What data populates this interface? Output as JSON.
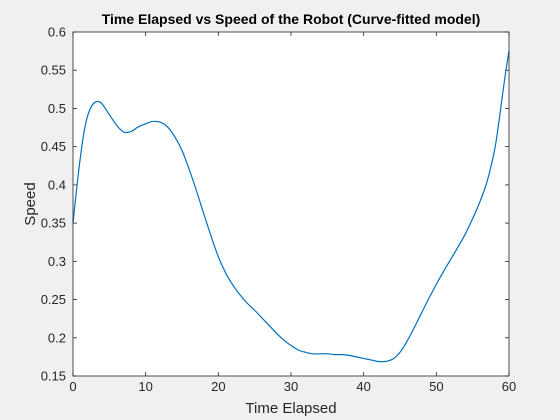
{
  "chart_data": {
    "type": "line",
    "title": "Time Elapsed vs Speed of the Robot (Curve-fitted model)",
    "xlabel": "Time Elapsed",
    "ylabel": "Speed",
    "xlim": [
      0,
      60
    ],
    "ylim": [
      0.15,
      0.6
    ],
    "xticks": [
      0,
      10,
      20,
      30,
      40,
      50,
      60
    ],
    "yticks": [
      0.15,
      0.2,
      0.25,
      0.3,
      0.35,
      0.4,
      0.45,
      0.5,
      0.55,
      0.6
    ],
    "grid": false,
    "series": [
      {
        "color": "#0072bd",
        "x": [
          0,
          0.5,
          1,
          1.5,
          2,
          2.5,
          3,
          3.5,
          4,
          5,
          6,
          7,
          8,
          9,
          10,
          11,
          12,
          13,
          14,
          15,
          16,
          17,
          18,
          19,
          20,
          21,
          22,
          23,
          24,
          25,
          26,
          27,
          28,
          29,
          30,
          31,
          32,
          33,
          34,
          35,
          36,
          37,
          38,
          39,
          40,
          41,
          42,
          43,
          44,
          45,
          46,
          47,
          48,
          49,
          50,
          51,
          52,
          53,
          54,
          55,
          56,
          57,
          58,
          58.5,
          59,
          59.5,
          60
        ],
        "y": [
          0.35,
          0.395,
          0.435,
          0.468,
          0.49,
          0.502,
          0.508,
          0.509,
          0.506,
          0.492,
          0.478,
          0.469,
          0.47,
          0.476,
          0.48,
          0.483,
          0.482,
          0.476,
          0.463,
          0.445,
          0.42,
          0.392,
          0.362,
          0.333,
          0.306,
          0.285,
          0.269,
          0.256,
          0.245,
          0.236,
          0.226,
          0.216,
          0.206,
          0.197,
          0.19,
          0.184,
          0.181,
          0.179,
          0.179,
          0.179,
          0.178,
          0.178,
          0.177,
          0.175,
          0.173,
          0.171,
          0.169,
          0.169,
          0.172,
          0.181,
          0.196,
          0.214,
          0.233,
          0.252,
          0.27,
          0.287,
          0.303,
          0.319,
          0.336,
          0.356,
          0.378,
          0.405,
          0.445,
          0.475,
          0.51,
          0.545,
          0.575
        ]
      }
    ]
  }
}
